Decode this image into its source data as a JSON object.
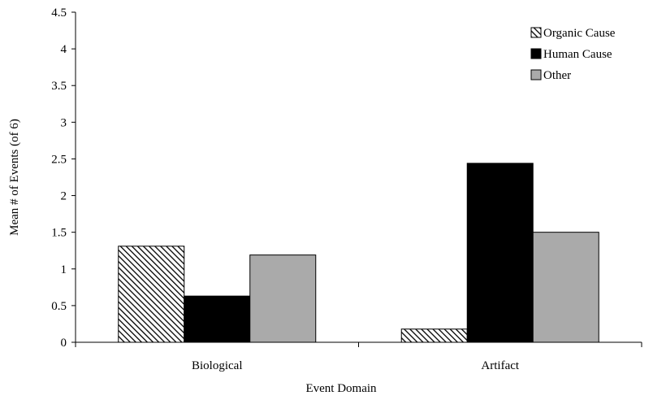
{
  "chart_data": {
    "type": "bar",
    "title": "",
    "xlabel": "Event Domain",
    "ylabel": "Mean # of Events (of 6)",
    "ylim": [
      0,
      4.5
    ],
    "yticks": [
      "0",
      "0.5",
      "1",
      "1.5",
      "2",
      "2.5",
      "3",
      "3.5",
      "4",
      "4.5"
    ],
    "categories": [
      "Biological",
      "Artifact"
    ],
    "series": [
      {
        "name": "Organic Cause",
        "values": [
          1.31,
          0.18
        ],
        "fill": "hatch"
      },
      {
        "name": "Human Cause",
        "values": [
          0.63,
          2.44
        ],
        "fill": "#000000"
      },
      {
        "name": "Other",
        "values": [
          1.19,
          1.5
        ],
        "fill": "#aaaaaa"
      }
    ],
    "grid": false,
    "legend_position": "top-right"
  }
}
